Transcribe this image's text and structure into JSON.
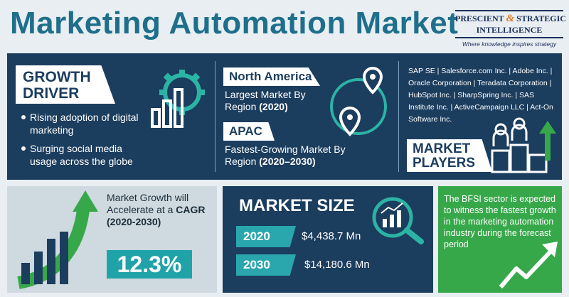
{
  "title": "Marketing Automation Market",
  "logo": {
    "line1_a": "PRESCIENT",
    "amp": "&",
    "line1_b": "STRATEGIC",
    "line2": "INTELLIGENCE",
    "tagline": "Where knowledge inspires strategy"
  },
  "growth_driver": {
    "heading_line1": "GROWTH",
    "heading_line2": "DRIVER",
    "bullets": [
      "Rising adoption of digital marketing",
      "Surging social media usage across the globe"
    ]
  },
  "regions": {
    "north_america": {
      "name": "North America",
      "desc": "Largest Market By Region",
      "year": "(2020)"
    },
    "apac": {
      "name": "APAC",
      "desc": "Fastest-Growing Market By Region",
      "year": "(2020–2030)"
    }
  },
  "players": {
    "list": "SAP SE | Salesforce.com Inc. | Adobe Inc. | Oracle Corporation | Teradata Corporation | HubSpot Inc. | SharpSpring Inc. | SAS Institute Inc. | ActiveCampaign LLC | Act-On Software Inc.",
    "heading_line1": "MARKET",
    "heading_line2": "PLAYERS"
  },
  "growth": {
    "text_line": "Market Growth will Accelerate at a",
    "cagr_label": "CAGR",
    "period": "(2020-2030)",
    "cagr_value": "12.3%"
  },
  "market_size": {
    "title": "MARKET SIZE",
    "rows": [
      {
        "year": "2020",
        "value": "$4,438.7 Mn"
      },
      {
        "year": "2030",
        "value": "$14,180.6 Mn"
      }
    ]
  },
  "bfsi_note": "The BFSI sector is expected to witness the fastest growth in the marketing automation industry during the forecast period",
  "colors": {
    "navy": "#1b3d5e",
    "teal": "#1fa3a8",
    "green": "#37a84a",
    "title": "#1f6f8b"
  }
}
